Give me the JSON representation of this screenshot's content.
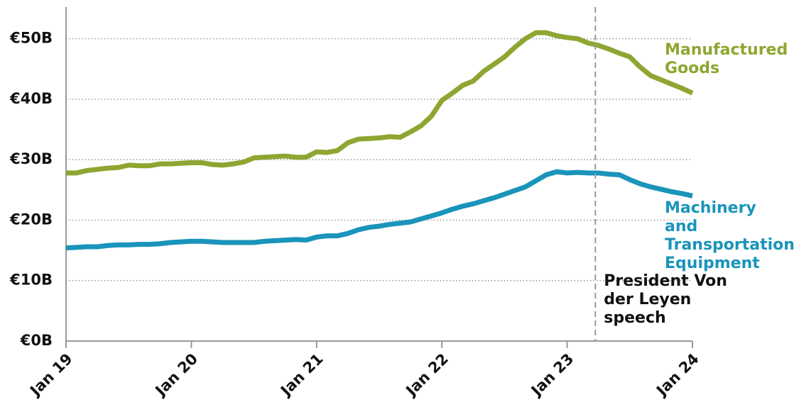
{
  "chart_data": {
    "type": "line",
    "categories": [
      "Jan 19",
      null,
      null,
      null,
      null,
      null,
      null,
      null,
      null,
      null,
      null,
      null,
      "Jan 20",
      null,
      null,
      null,
      null,
      null,
      null,
      null,
      null,
      null,
      null,
      null,
      "Jan 21",
      null,
      null,
      null,
      null,
      null,
      null,
      null,
      null,
      null,
      null,
      null,
      "Jan 22",
      null,
      null,
      null,
      null,
      null,
      null,
      null,
      null,
      null,
      null,
      null,
      "Jan 23",
      null,
      null,
      null,
      null,
      null,
      null,
      null,
      null,
      null,
      null,
      null,
      "Jan 24"
    ],
    "series": [
      {
        "name": "Manufactured Goods",
        "color": "#8ea631",
        "values": [
          27.8,
          27.8,
          28.2,
          28.4,
          28.6,
          28.7,
          29.1,
          29.0,
          29.0,
          29.3,
          29.3,
          29.4,
          29.5,
          29.5,
          29.2,
          29.1,
          29.3,
          29.6,
          30.3,
          30.4,
          30.5,
          30.6,
          30.4,
          30.4,
          31.3,
          31.2,
          31.5,
          32.8,
          33.4,
          33.5,
          33.6,
          33.8,
          33.7,
          34.6,
          35.6,
          37.2,
          39.8,
          41.0,
          42.3,
          43.0,
          44.6,
          45.8,
          47.0,
          48.6,
          50.0,
          51.0,
          51.0,
          50.5,
          50.2,
          50.0,
          49.3,
          48.9,
          48.3,
          47.6,
          47.0,
          45.3,
          43.9,
          43.2,
          42.5,
          41.8,
          41.0
        ]
      },
      {
        "name": "Machinery and Transportation Equipment",
        "color": "#1a94bb",
        "values": [
          15.4,
          15.5,
          15.6,
          15.6,
          15.8,
          15.9,
          15.9,
          16.0,
          16.0,
          16.1,
          16.3,
          16.4,
          16.5,
          16.5,
          16.4,
          16.3,
          16.3,
          16.3,
          16.3,
          16.5,
          16.6,
          16.7,
          16.8,
          16.7,
          17.2,
          17.4,
          17.4,
          17.8,
          18.4,
          18.8,
          19.0,
          19.3,
          19.5,
          19.7,
          20.2,
          20.7,
          21.2,
          21.8,
          22.3,
          22.7,
          23.2,
          23.7,
          24.3,
          24.9,
          25.5,
          26.5,
          27.5,
          28.0,
          27.8,
          27.9,
          27.8,
          27.8,
          27.6,
          27.5,
          26.7,
          26.0,
          25.5,
          25.1,
          24.7,
          24.4,
          24.0
        ]
      }
    ],
    "ylim": [
      0,
      55
    ],
    "yticks": [
      {
        "value": 0,
        "label": "€0B"
      },
      {
        "value": 10,
        "label": "€10B"
      },
      {
        "value": 20,
        "label": "€20B"
      },
      {
        "value": 30,
        "label": "€30B"
      },
      {
        "value": 40,
        "label": "€40B"
      },
      {
        "value": 50,
        "label": "€50B"
      }
    ],
    "grid": true,
    "annotation": {
      "text": "President Von der Leyen speech",
      "x": 50.7
    }
  }
}
